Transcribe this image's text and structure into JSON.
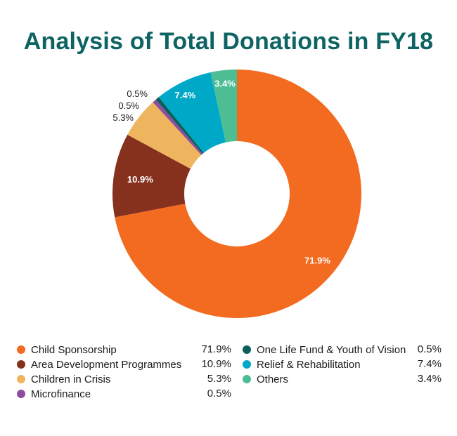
{
  "chart_data": {
    "type": "pie",
    "title": "Analysis of Total Donations in FY18",
    "slices": [
      {
        "label": "Child Sponsorship",
        "value": 71.9,
        "display": "71.9%",
        "color": "#f26b21"
      },
      {
        "label": "Area Development Programmes",
        "value": 10.9,
        "display": "10.9%",
        "color": "#86301e"
      },
      {
        "label": "Children in Crisis",
        "value": 5.3,
        "display": "5.3%",
        "color": "#efb55e"
      },
      {
        "label": "Microfinance",
        "value": 0.5,
        "display": "0.5%",
        "color": "#8e4ea0"
      },
      {
        "label": "One Life Fund & Youth of Vision",
        "value": 0.5,
        "display": "0.5%",
        "color": "#0d5f5c"
      },
      {
        "label": "Relief & Rehabilitation",
        "value": 7.4,
        "display": "7.4%",
        "color": "#00a8c8"
      },
      {
        "label": "Others",
        "value": 3.4,
        "display": "3.4%",
        "color": "#4dbd94"
      }
    ],
    "donut": true,
    "legend_position": "bottom"
  }
}
